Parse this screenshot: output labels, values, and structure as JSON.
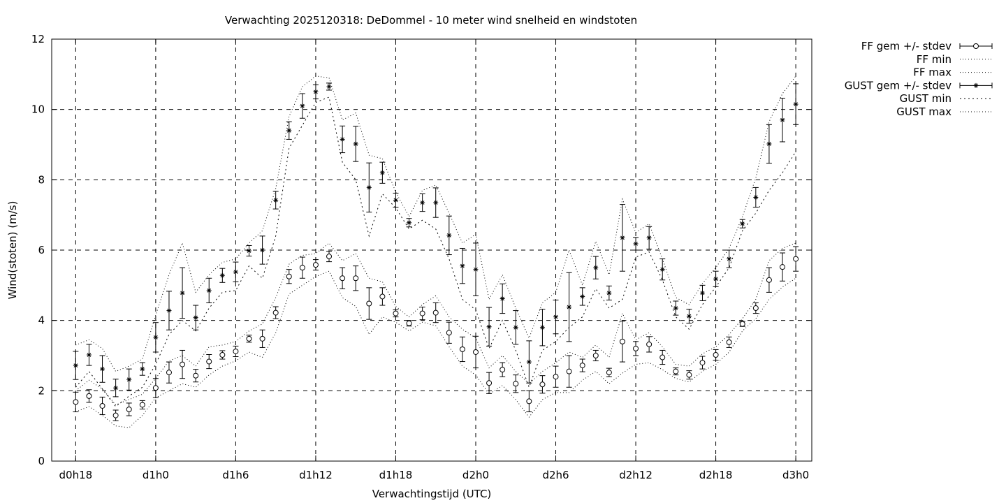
{
  "chart_data": {
    "type": "line",
    "title": "Verwachting 2025120318: DeDommel - 10 meter wind snelheid en windstoten",
    "xlabel": "Verwachtingstijd (UTC)",
    "ylabel": "Wind(stoten) (m/s)",
    "x_ticks": [
      {
        "x": 0,
        "label": "d0h18"
      },
      {
        "x": 6,
        "label": "d1h0"
      },
      {
        "x": 12,
        "label": "d1h6"
      },
      {
        "x": 18,
        "label": "d1h12"
      },
      {
        "x": 24,
        "label": "d1h18"
      },
      {
        "x": 30,
        "label": "d2h0"
      },
      {
        "x": 36,
        "label": "d2h6"
      },
      {
        "x": 42,
        "label": "d2h12"
      },
      {
        "x": 48,
        "label": "d2h18"
      },
      {
        "x": 54,
        "label": "d3h0"
      }
    ],
    "y_ticks": [
      0,
      2,
      4,
      6,
      8,
      10,
      12
    ],
    "ylim": [
      0,
      12
    ],
    "xlim": [
      -1.8,
      55.2
    ],
    "grid": true,
    "legend_position": "outside-top-right",
    "x": [
      0,
      1,
      2,
      3,
      4,
      5,
      6,
      7,
      8,
      9,
      10,
      11,
      12,
      13,
      14,
      15,
      16,
      17,
      18,
      19,
      20,
      21,
      22,
      23,
      24,
      25,
      26,
      27,
      28,
      29,
      30,
      31,
      32,
      33,
      34,
      35,
      36,
      37,
      38,
      39,
      40,
      41,
      42,
      43,
      44,
      45,
      46,
      47,
      48,
      49,
      50,
      51,
      52,
      53,
      54
    ],
    "series": [
      {
        "name": "FF gem +/- stdev",
        "style": "points-errorbars",
        "marker": "circle",
        "values": [
          1.68,
          1.85,
          1.57,
          1.3,
          1.47,
          1.6,
          2.08,
          2.52,
          2.75,
          2.43,
          2.83,
          3.02,
          3.12,
          3.48,
          3.48,
          4.22,
          5.25,
          5.5,
          5.58,
          5.82,
          5.2,
          5.2,
          4.48,
          4.68,
          4.2,
          3.92,
          4.2,
          4.22,
          3.65,
          3.18,
          3.1,
          2.22,
          2.6,
          2.2,
          1.7,
          2.18,
          2.4,
          2.55,
          2.72,
          3.0,
          2.52,
          3.4,
          3.2,
          3.32,
          2.95,
          2.55,
          2.45,
          2.8,
          3.02,
          3.38,
          3.9,
          4.35,
          5.15,
          5.52,
          5.75
        ],
        "stdev": [
          0.28,
          0.18,
          0.25,
          0.15,
          0.18,
          0.12,
          0.27,
          0.3,
          0.4,
          0.18,
          0.2,
          0.12,
          0.15,
          0.1,
          0.25,
          0.17,
          0.2,
          0.3,
          0.15,
          0.15,
          0.3,
          0.35,
          0.45,
          0.25,
          0.1,
          0.08,
          0.18,
          0.28,
          0.3,
          0.35,
          0.45,
          0.3,
          0.2,
          0.25,
          0.3,
          0.25,
          0.3,
          0.45,
          0.18,
          0.15,
          0.12,
          0.58,
          0.2,
          0.22,
          0.2,
          0.1,
          0.12,
          0.18,
          0.15,
          0.15,
          0.07,
          0.15,
          0.35,
          0.4,
          0.35
        ]
      },
      {
        "name": "FF min",
        "style": "dotted",
        "values": [
          1.4,
          1.55,
          1.3,
          1.0,
          0.95,
          1.3,
          1.8,
          2.0,
          2.2,
          2.1,
          2.45,
          2.7,
          2.85,
          3.1,
          2.95,
          3.65,
          4.75,
          5.0,
          5.25,
          5.4,
          4.65,
          4.4,
          3.6,
          4.1,
          3.95,
          3.7,
          3.95,
          3.85,
          3.25,
          2.7,
          2.45,
          1.9,
          2.15,
          1.75,
          1.25,
          1.75,
          1.95,
          1.95,
          2.3,
          2.55,
          2.2,
          2.5,
          2.75,
          2.8,
          2.6,
          2.35,
          2.25,
          2.55,
          2.75,
          3.1,
          3.7,
          4.05,
          4.6,
          4.95,
          5.2
        ]
      },
      {
        "name": "FF max",
        "style": "dotted",
        "values": [
          2.0,
          2.3,
          2.05,
          1.6,
          1.75,
          1.9,
          2.35,
          2.85,
          3.0,
          2.7,
          3.25,
          3.3,
          3.4,
          3.7,
          3.9,
          4.65,
          5.6,
          5.85,
          5.9,
          6.2,
          5.7,
          5.9,
          5.2,
          5.1,
          4.4,
          4.1,
          4.45,
          4.7,
          4.1,
          3.75,
          3.5,
          2.65,
          3.0,
          2.55,
          2.2,
          2.55,
          2.8,
          3.1,
          2.95,
          3.3,
          2.95,
          4.2,
          3.45,
          3.65,
          3.25,
          2.75,
          2.7,
          3.05,
          3.25,
          3.6,
          4.05,
          4.6,
          5.7,
          6.05,
          6.2
        ]
      },
      {
        "name": "GUST gem +/- stdev",
        "style": "points-errorbars",
        "marker": "star",
        "values": [
          2.72,
          3.02,
          2.62,
          2.08,
          2.32,
          2.62,
          3.52,
          4.28,
          4.78,
          4.08,
          4.85,
          5.28,
          5.38,
          5.98,
          6.0,
          7.42,
          9.4,
          10.1,
          10.5,
          10.65,
          9.15,
          9.02,
          7.78,
          8.2,
          7.42,
          6.78,
          7.35,
          7.35,
          6.42,
          5.55,
          5.45,
          3.82,
          4.62,
          3.8,
          2.82,
          3.8,
          4.1,
          4.38,
          4.68,
          5.5,
          4.78,
          6.35,
          6.18,
          6.35,
          5.45,
          4.35,
          4.12,
          4.78,
          5.18,
          5.75,
          6.75,
          7.5,
          9.02,
          9.7,
          10.15
        ]
      },
      {
        "name": "GUST min",
        "style": "dotted",
        "values": [
          2.1,
          2.55,
          2.05,
          1.55,
          1.85,
          2.1,
          2.75,
          3.6,
          4.0,
          3.7,
          4.35,
          4.8,
          4.85,
          5.55,
          5.2,
          6.4,
          8.9,
          9.55,
          10.2,
          10.35,
          8.5,
          8.0,
          6.4,
          7.6,
          7.2,
          6.6,
          6.85,
          6.6,
          5.75,
          4.6,
          4.3,
          3.2,
          4.0,
          3.15,
          2.1,
          3.15,
          3.4,
          3.8,
          4.1,
          4.9,
          4.35,
          4.6,
          5.8,
          5.95,
          5.15,
          4.1,
          3.75,
          4.45,
          4.95,
          5.5,
          6.55,
          7.05,
          7.7,
          8.2,
          8.8
        ]
      },
      {
        "name": "GUST max",
        "style": "dotted",
        "values": [
          3.3,
          3.45,
          3.2,
          2.55,
          2.7,
          2.9,
          4.15,
          5.3,
          6.2,
          4.8,
          5.3,
          5.65,
          5.75,
          6.2,
          6.55,
          7.75,
          9.8,
          10.65,
          10.95,
          10.9,
          9.7,
          9.9,
          8.7,
          8.6,
          7.65,
          6.95,
          7.7,
          7.85,
          7.05,
          6.2,
          6.45,
          4.6,
          5.3,
          4.35,
          3.5,
          4.5,
          4.8,
          6.0,
          5.0,
          6.25,
          5.3,
          7.45,
          6.5,
          6.75,
          5.75,
          4.65,
          4.45,
          5.05,
          5.5,
          6.05,
          6.95,
          8.05,
          9.65,
          10.45,
          10.95
        ]
      }
    ]
  }
}
